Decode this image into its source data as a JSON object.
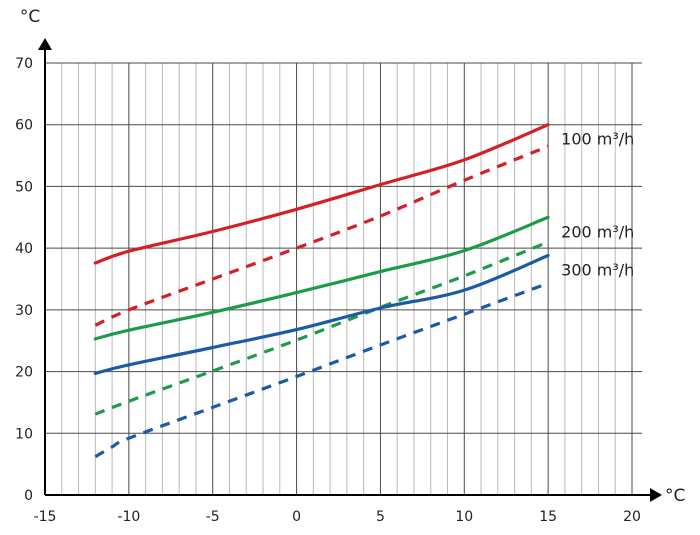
{
  "chart_data": {
    "type": "line",
    "title": "",
    "xlabel": "°C",
    "ylabel": "°C",
    "xlim": [
      -15,
      20
    ],
    "ylim": [
      0,
      70
    ],
    "x_ticks": [
      "-15",
      "-10",
      "-5",
      "0",
      "5",
      "10",
      "15",
      "20"
    ],
    "y_ticks": [
      "0",
      "10",
      "20",
      "30",
      "40",
      "50",
      "60",
      "70"
    ],
    "grid": true,
    "series": [
      {
        "name": "100 m³/h",
        "style": "solid",
        "color": "#d41f26",
        "x": [
          -12,
          -10,
          -5,
          0,
          5,
          10,
          15
        ],
        "y": [
          37.6,
          39.5,
          42.7,
          46.3,
          50.3,
          54.3,
          60
        ]
      },
      {
        "name": "",
        "style": "dashed",
        "color": "#d41f26",
        "x": [
          -12,
          -10,
          -5,
          0,
          5,
          10,
          15
        ],
        "y": [
          27.5,
          30,
          35,
          40,
          45.2,
          51,
          56.5
        ]
      },
      {
        "name": "200 m³/h",
        "style": "solid",
        "color": "#1e9b48",
        "x": [
          -12,
          -10,
          -5,
          0,
          5,
          10,
          15
        ],
        "y": [
          25.3,
          26.7,
          29.6,
          32.8,
          36.2,
          39.6,
          45
        ]
      },
      {
        "name": "",
        "style": "dashed",
        "color": "#1e9b48",
        "x": [
          -12,
          -10,
          -5,
          0,
          5,
          10,
          15
        ],
        "y": [
          13.1,
          15.2,
          20.1,
          25.1,
          30.4,
          35.5,
          41
        ]
      },
      {
        "name": "300 m³/h",
        "style": "solid",
        "color": "#1a5aa8",
        "x": [
          -12,
          -10,
          -5,
          0,
          5,
          10,
          15
        ],
        "y": [
          19.7,
          21.1,
          23.9,
          26.8,
          30.3,
          33.2,
          38.8
        ]
      },
      {
        "name": "",
        "style": "dashed",
        "color": "#1a5aa8",
        "x": [
          -12,
          -11,
          -10,
          -5,
          0,
          5,
          10,
          15
        ],
        "y": [
          6.2,
          7.8,
          9.2,
          14.2,
          19.2,
          24.3,
          29.3,
          34.3
        ]
      }
    ]
  }
}
